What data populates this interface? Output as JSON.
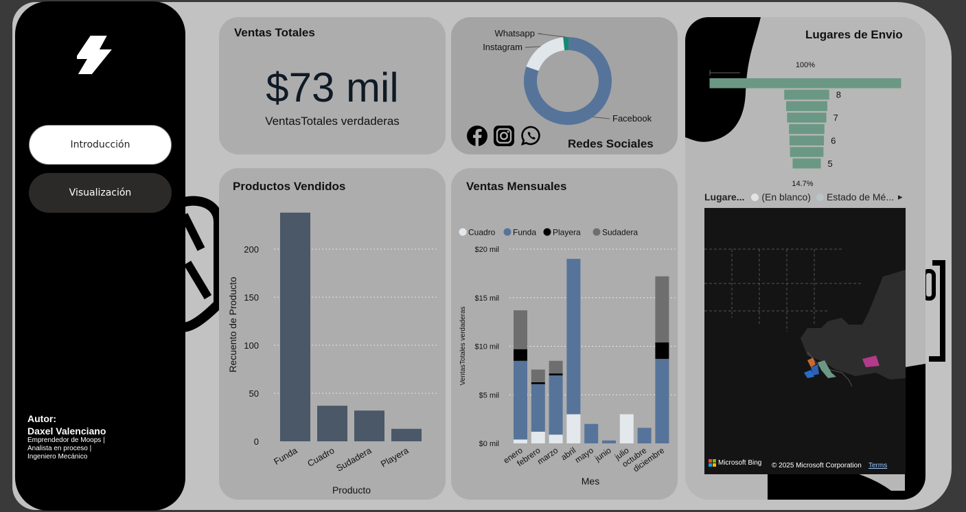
{
  "sidebar": {
    "nav": [
      {
        "label": "Introducción"
      },
      {
        "label": "Visualización"
      }
    ],
    "author": {
      "label": "Autor:",
      "name": "Daxel Valenciano",
      "lines": [
        "Emprendedor de Moops |",
        "Analista en proceso |",
        "Ingeniero Mecánico"
      ]
    }
  },
  "kpi": {
    "title": "Ventas Totales",
    "value": "$73 mil",
    "label": "VentasTotales verdaderas"
  },
  "redes": {
    "title": "Redes Sociales",
    "chart_data": {
      "type": "pie",
      "donut": true,
      "categories": [
        "Facebook",
        "Instagram",
        "Whatsapp"
      ],
      "values": [
        80,
        18,
        2
      ],
      "colors": [
        "#56749a",
        "#e0e6ea",
        "#138a72"
      ]
    },
    "icons": [
      "facebook-icon",
      "instagram-icon",
      "whatsapp-icon"
    ]
  },
  "productos": {
    "title": "Productos Vendidos",
    "chart_data": {
      "type": "bar",
      "categories": [
        "Funda",
        "Cuadro",
        "Sudadera",
        "Playera"
      ],
      "values": [
        238,
        37,
        32,
        13
      ],
      "xlabel": "Producto",
      "ylabel": "Recuento de Producto",
      "yticks": [
        0,
        50,
        100,
        150,
        200
      ],
      "ylim": [
        0,
        245
      ],
      "color": "#4a5868"
    }
  },
  "mensuales": {
    "title": "Ventas Mensuales",
    "chart_data": {
      "type": "bar",
      "stacked": true,
      "categories": [
        "enero",
        "febrero",
        "marzo",
        "abril",
        "mayo",
        "junio",
        "julio",
        "octubre",
        "diciembre"
      ],
      "series": [
        {
          "name": "Cuadro",
          "color": "#e3e8ec",
          "values": [
            0.4,
            1.2,
            0.9,
            3.0,
            0,
            0,
            3.0,
            0,
            0
          ]
        },
        {
          "name": "Funda",
          "color": "#56749a",
          "values": [
            8.1,
            4.9,
            6.1,
            16.0,
            2.0,
            0.3,
            0,
            1.6,
            8.7
          ]
        },
        {
          "name": "Playera",
          "color": "#000000",
          "values": [
            1.2,
            0.2,
            0.2,
            0,
            0,
            0,
            0,
            0,
            1.7
          ]
        },
        {
          "name": "Sudadera",
          "color": "#6e6e6e",
          "values": [
            4.0,
            1.3,
            1.3,
            0,
            0,
            0,
            0,
            0,
            6.8
          ]
        }
      ],
      "xlabel": "Mes",
      "ylabel": "VentasTotales verdaderas",
      "yticks": [
        "$0 mil",
        "$5 mil",
        "$10 mil",
        "$15 mil",
        "$20 mil"
      ],
      "ylim": [
        0,
        20
      ]
    }
  },
  "envio": {
    "title": "Lugares de Envio",
    "funnel": {
      "chart_data": {
        "type": "bar",
        "orientation": "funnel",
        "values": [
          100,
          23.5,
          21.5,
          20.5,
          18.5,
          18,
          17.5,
          14.7
        ],
        "labels": [
          "",
          "8",
          "",
          "7",
          "",
          "6",
          "",
          "5"
        ],
        "top_label": "100%",
        "bottom_label": "14.7%",
        "color": "#6b9884"
      }
    },
    "legend": {
      "title": "Lugare...",
      "items": [
        {
          "name": "(En blanco)",
          "color": "#e3e3e3"
        },
        {
          "name": "Estado de Mé...",
          "color": "#b8c4c8"
        }
      ]
    },
    "map": {
      "brand": "Microsoft Bing",
      "copyright": "© 2025 Microsoft Corporation",
      "terms": "Terms"
    }
  }
}
